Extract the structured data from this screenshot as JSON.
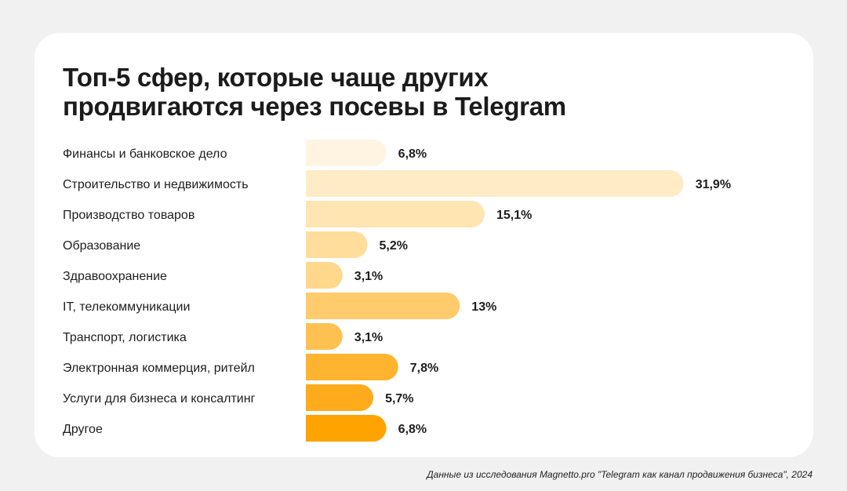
{
  "title": {
    "line1": "Топ-5 сфер, которые чаще других",
    "line2": "продвигаются через посевы в Telegram"
  },
  "footnote": "Данные из исследования Magnetto.pro \"Telegram как канал продвижения бизнеса\", 2024",
  "chart_data": {
    "type": "bar",
    "orientation": "horizontal",
    "categories": [
      "Финансы и банковское дело",
      "Строительство и недвижимость",
      "Производство товаров",
      "Образование",
      "Здравоохранение",
      "IT, телекоммуникации",
      "Транспорт, логистика",
      "Электронная коммерция, ритейл",
      "Услуги для бизнеса и консалтинг",
      "Другое"
    ],
    "values": [
      6.8,
      31.9,
      15.1,
      5.2,
      3.1,
      13,
      3.1,
      7.8,
      5.7,
      6.8
    ],
    "value_labels": [
      "6,8%",
      "31,9%",
      "15,1%",
      "5,2%",
      "3,1%",
      "13%",
      "3,1%",
      "7,8%",
      "5,7%",
      "6,8%"
    ],
    "colors": [
      "#fff4e2",
      "#ffebc6",
      "#ffe5b2",
      "#ffde9b",
      "#ffd88c",
      "#ffcb6c",
      "#ffc052",
      "#ffb42f",
      "#ffab1c",
      "#ffa300"
    ],
    "grid": false,
    "legend": "none"
  }
}
